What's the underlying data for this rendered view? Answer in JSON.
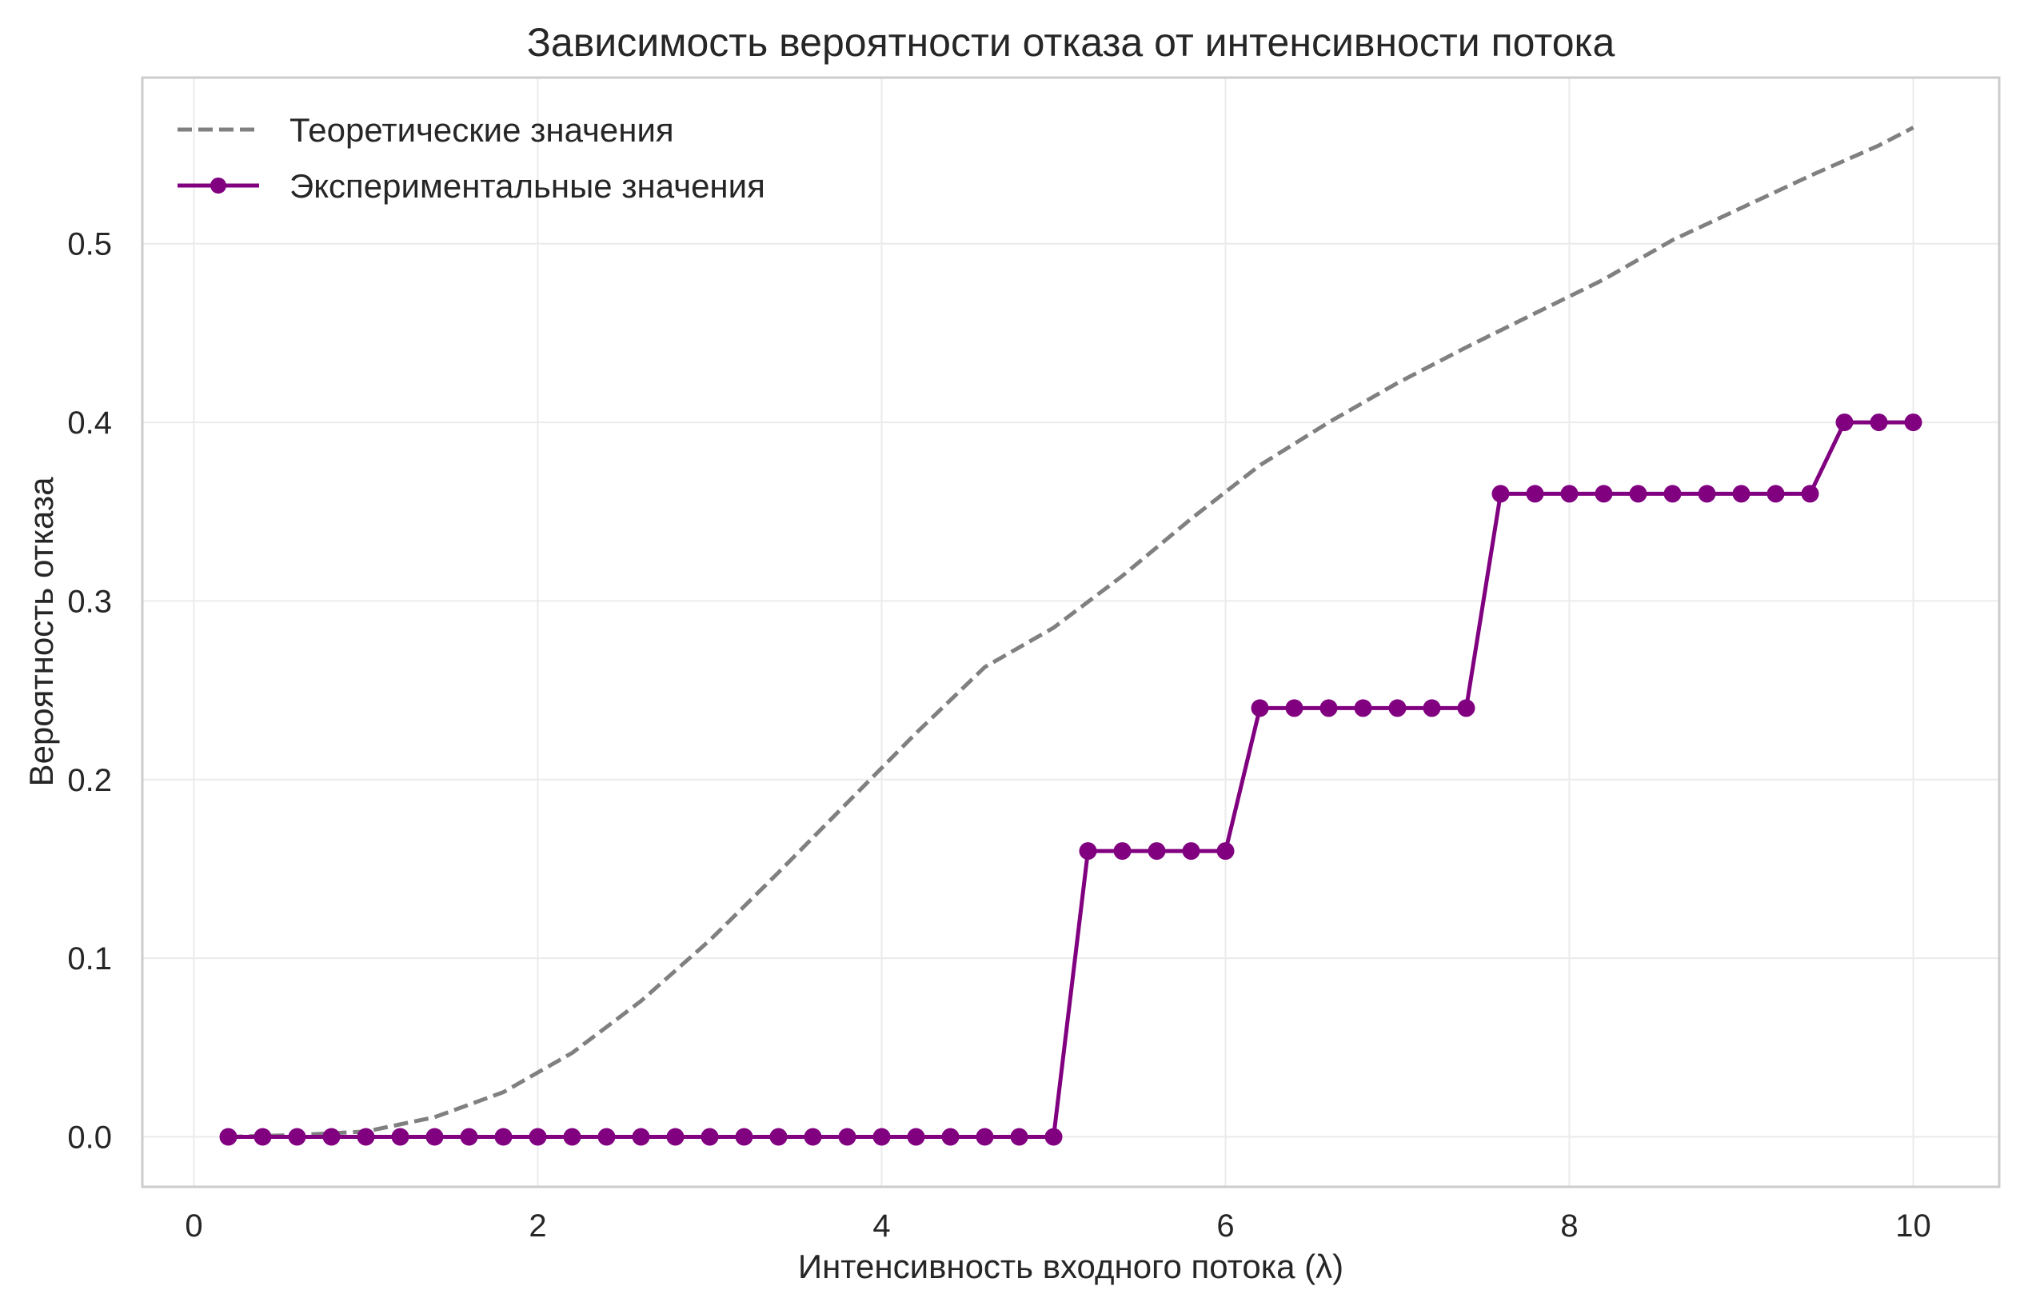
{
  "chart_data": {
    "type": "line",
    "title": "Зависимость вероятности отказа от интенсивности потока",
    "xlabel": "Интенсивность входного потока (λ)",
    "ylabel": "Вероятность отказа",
    "xlim": [
      -0.3,
      10.5
    ],
    "ylim": [
      -0.028,
      0.593
    ],
    "xticks": [
      0,
      2,
      4,
      6,
      8,
      10
    ],
    "xtick_labels": [
      "0",
      "2",
      "4",
      "6",
      "8",
      "10"
    ],
    "yticks": [
      0.0,
      0.1,
      0.2,
      0.3,
      0.4,
      0.5
    ],
    "ytick_labels": [
      "0.0",
      "0.1",
      "0.2",
      "0.3",
      "0.4",
      "0.5"
    ],
    "grid": true,
    "legend_position": "top-left",
    "series": [
      {
        "name": "Теоретические значения",
        "style": "dashed",
        "color": "#808080",
        "x": [
          0.2,
          0.6,
          1.0,
          1.4,
          1.8,
          2.2,
          2.6,
          3.0,
          3.4,
          3.8,
          4.2,
          4.6,
          5.0,
          5.4,
          5.8,
          6.2,
          6.6,
          7.0,
          7.4,
          7.8,
          8.2,
          8.6,
          9.0,
          9.4,
          9.8,
          10.0
        ],
        "y": [
          0.0,
          0.001,
          0.003,
          0.011,
          0.025,
          0.047,
          0.076,
          0.11,
          0.148,
          0.187,
          0.226,
          0.263,
          0.285,
          0.314,
          0.346,
          0.376,
          0.4,
          0.422,
          0.442,
          0.461,
          0.48,
          0.502,
          0.52,
          0.538,
          0.555,
          0.565
        ]
      },
      {
        "name": "Экспериментальные значения",
        "style": "solid-markers",
        "color": "#800080",
        "x": [
          0.2,
          0.4,
          0.6,
          0.8,
          1.0,
          1.2,
          1.4,
          1.6,
          1.8,
          2.0,
          2.2,
          2.4,
          2.6,
          2.8,
          3.0,
          3.2,
          3.4,
          3.6,
          3.8,
          4.0,
          4.2,
          4.4,
          4.6,
          4.8,
          5.0,
          5.2,
          5.4,
          5.6,
          5.8,
          6.0,
          6.2,
          6.4,
          6.6,
          6.8,
          7.0,
          7.2,
          7.4,
          7.6,
          7.8,
          8.0,
          8.2,
          8.4,
          8.6,
          8.8,
          9.0,
          9.2,
          9.4,
          9.6,
          9.8,
          10.0
        ],
        "y": [
          0,
          0,
          0,
          0,
          0,
          0,
          0,
          0,
          0,
          0,
          0,
          0,
          0,
          0,
          0,
          0,
          0,
          0,
          0,
          0,
          0,
          0,
          0,
          0,
          0,
          0.16,
          0.16,
          0.16,
          0.16,
          0.16,
          0.24,
          0.24,
          0.24,
          0.24,
          0.24,
          0.24,
          0.24,
          0.36,
          0.36,
          0.36,
          0.36,
          0.36,
          0.36,
          0.36,
          0.36,
          0.36,
          0.36,
          0.4,
          0.4,
          0.4
        ]
      }
    ]
  }
}
